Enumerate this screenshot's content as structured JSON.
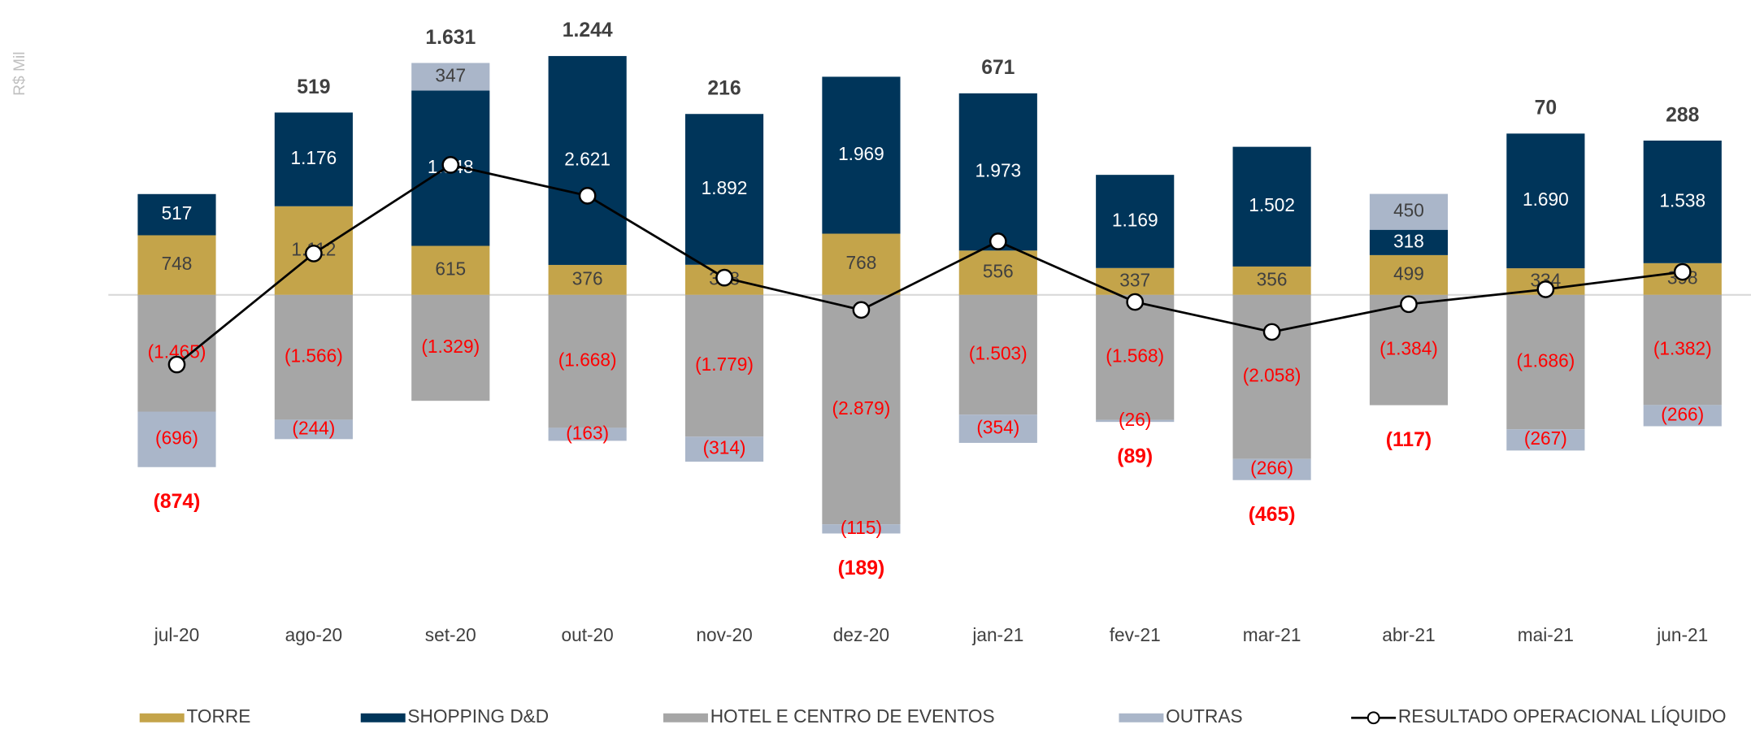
{
  "chart_data": {
    "type": "bar",
    "y_label": "R$ Mil",
    "categories": [
      "jul-20",
      "ago-20",
      "set-20",
      "out-20",
      "nov-20",
      "dez-20",
      "jan-21",
      "fev-21",
      "mar-21",
      "abr-21",
      "mai-21",
      "jun-21"
    ],
    "stacked": true,
    "ylim": [
      -3500,
      3700
    ],
    "series": [
      {
        "name": "TORRE",
        "color": "#c4a44a",
        "values": [
          748,
          1112,
          615,
          376,
          378,
          768,
          556,
          337,
          356,
          499,
          334,
          398
        ],
        "value_labels": [
          "748",
          "1.112",
          "615",
          "376",
          "378",
          "768",
          "556",
          "337",
          "356",
          "499",
          "334",
          "398"
        ]
      },
      {
        "name": "SHOPPING D&D",
        "color": "#00355a",
        "values": [
          517,
          1176,
          1948,
          2621,
          1892,
          1969,
          1973,
          1169,
          1502,
          318,
          1690,
          1538
        ],
        "value_labels": [
          "517",
          "1.176",
          "1.948",
          "2.621",
          "1.892",
          "1.969",
          "1.973",
          "1.169",
          "1.502",
          "318",
          "1.690",
          "1.538"
        ]
      },
      {
        "name": "HOTEL E CENTRO DE EVENTOS",
        "color": "#a6a6a6",
        "values": [
          -1465,
          -1566,
          -1329,
          -1668,
          -1779,
          -2879,
          -1503,
          -1568,
          -2058,
          -1384,
          -1686,
          -1382
        ],
        "value_labels": [
          "(1.465)",
          "(1.566)",
          "(1.329)",
          "(1.668)",
          "(1.779)",
          "(2.879)",
          "(1.503)",
          "(1.568)",
          "(2.058)",
          "(1.384)",
          "(1.686)",
          "(1.382)"
        ]
      },
      {
        "name": "OUTRAS",
        "color": "#aab6c9",
        "values": [
          -696,
          -244,
          347,
          -163,
          -314,
          -115,
          -354,
          -26,
          -266,
          450,
          -267,
          -266
        ],
        "value_labels": [
          "(696)",
          "(244)",
          "347",
          "(163)",
          "(314)",
          "(115)",
          "(354)",
          "(26)",
          "(266)",
          "450",
          "(267)",
          "(266)"
        ]
      },
      {
        "name": "RESULTADO OPERACIONAL LÍQUIDO",
        "type": "line",
        "color": "#000000",
        "values": [
          -874,
          519,
          1631,
          1244,
          216,
          -189,
          671,
          -89,
          -465,
          -117,
          70,
          288
        ],
        "value_labels": [
          "(874)",
          "519",
          "1.631",
          "1.244",
          "216",
          "(189)",
          "671",
          "(89)",
          "(465)",
          "(117)",
          "70",
          "288"
        ]
      }
    ]
  }
}
